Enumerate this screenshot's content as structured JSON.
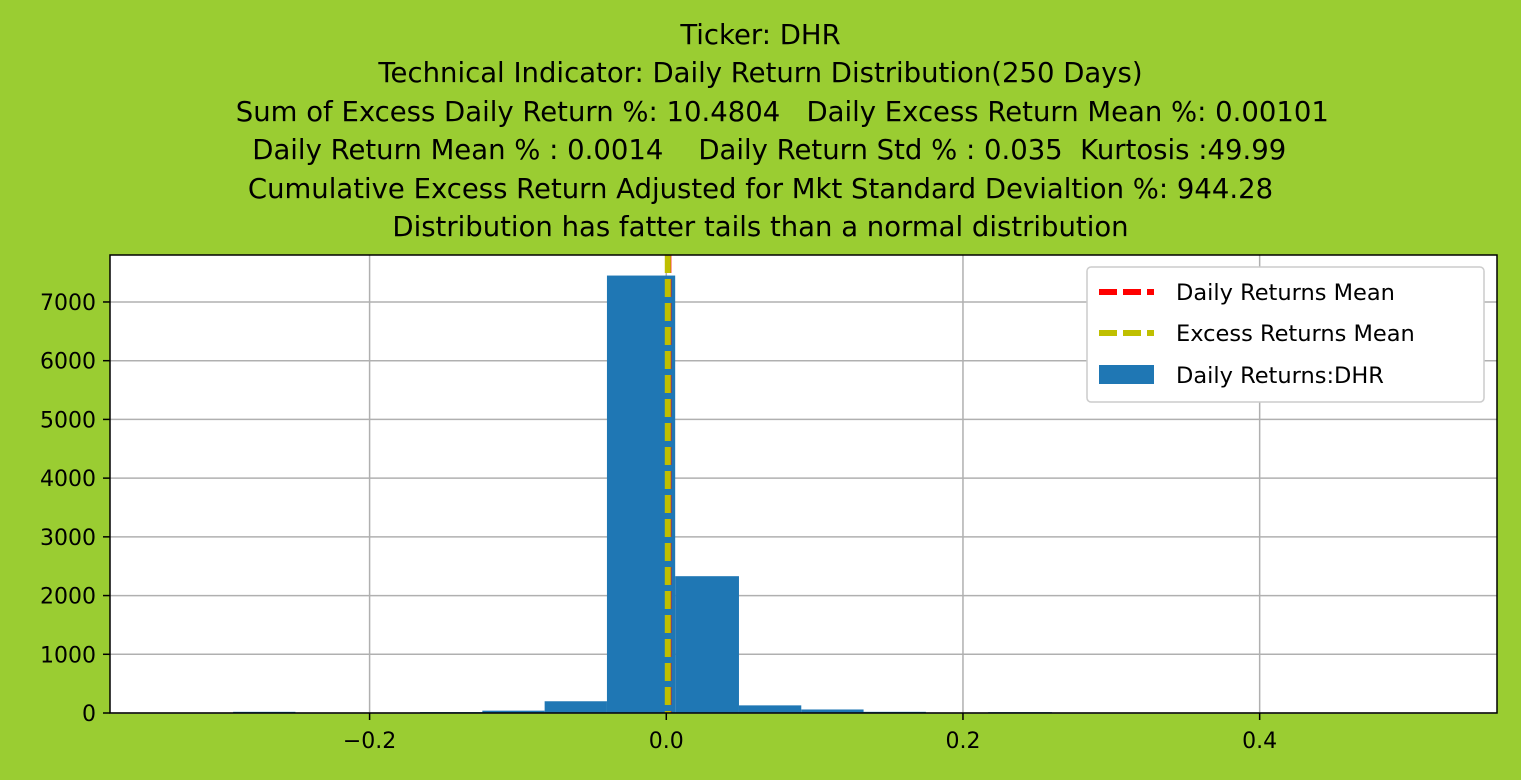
{
  "chart_data": {
    "type": "bar",
    "title_lines": [
      "Ticker: DHR",
      "Technical Indicator: Daily Return Distribution(250 Days)",
      "     Sum of Excess Daily Return %: 10.4804   Daily Excess Return Mean %: 0.00101",
      "  Daily Return Mean % : 0.0014    Daily Return Std % : 0.035  Kurtosis :49.99",
      "Cumulative Excess Return Adjusted for Mkt Standard Devialtion %: 944.28",
      "Distribution has fatter tails than a normal distribution"
    ],
    "xlim": [
      -0.375,
      0.56
    ],
    "ylim": [
      0,
      7800
    ],
    "xticks": [
      -0.2,
      0.0,
      0.2,
      0.4
    ],
    "xtick_labels": [
      "−0.2",
      "0.0",
      "0.2",
      "0.4"
    ],
    "yticks": [
      0,
      1000,
      2000,
      3000,
      4000,
      5000,
      6000,
      7000
    ],
    "ytick_labels": [
      "0",
      "1000",
      "2000",
      "3000",
      "4000",
      "5000",
      "6000",
      "7000"
    ],
    "grid": true,
    "legend_position": "top-right",
    "histogram": {
      "name": "Daily Returns:DHR",
      "color": "#1f77b4",
      "bins": [
        {
          "x0": -0.292,
          "x1": -0.25,
          "count": 20
        },
        {
          "x0": -0.25,
          "x1": -0.208,
          "count": 6
        },
        {
          "x0": -0.208,
          "x1": -0.166,
          "count": 8
        },
        {
          "x0": -0.166,
          "x1": -0.124,
          "count": 15
        },
        {
          "x0": -0.124,
          "x1": -0.082,
          "count": 40
        },
        {
          "x0": -0.082,
          "x1": -0.04,
          "count": 200
        },
        {
          "x0": -0.04,
          "x1": 0.006,
          "count": 7450
        },
        {
          "x0": 0.006,
          "x1": 0.049,
          "count": 2330
        },
        {
          "x0": 0.049,
          "x1": 0.091,
          "count": 130
        },
        {
          "x0": 0.091,
          "x1": 0.133,
          "count": 60
        },
        {
          "x0": 0.133,
          "x1": 0.175,
          "count": 20
        },
        {
          "x0": 0.175,
          "x1": 0.217,
          "count": 6
        },
        {
          "x0": 0.217,
          "x1": 0.26,
          "count": 14
        },
        {
          "x0": 0.26,
          "x1": 0.302,
          "count": 5
        }
      ]
    },
    "vlines": [
      {
        "name": "Daily Returns Mean",
        "x": 0.0014,
        "color": "#ff0000",
        "style": "dashed"
      },
      {
        "name": "Excess Returns Mean",
        "x": 0.00101,
        "color": "#bfbf00",
        "style": "dashed"
      }
    ]
  }
}
